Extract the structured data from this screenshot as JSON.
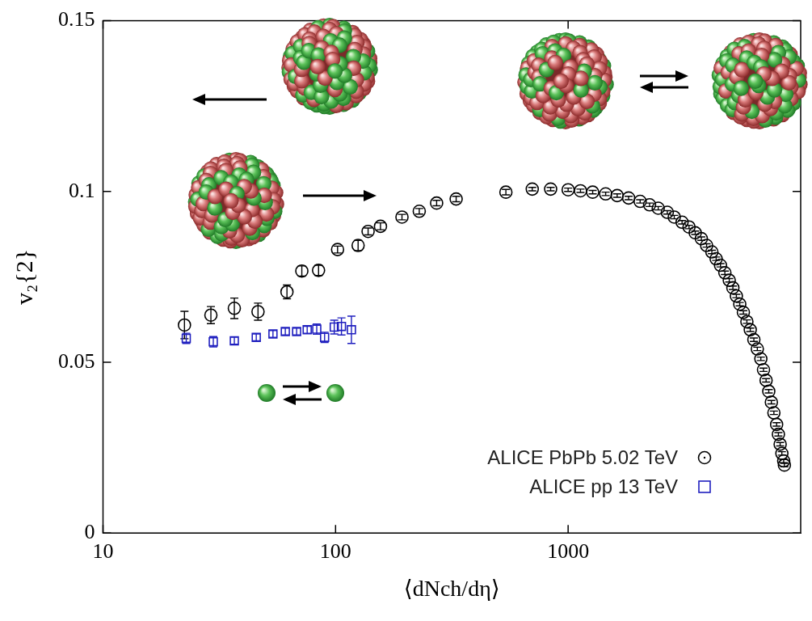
{
  "chart_data": {
    "type": "scatter",
    "x_label": "⟨dNch/dη⟩",
    "y_label": "v₂{2}",
    "log": "x",
    "grid": false,
    "legend": "lower right",
    "xlim": [
      10,
      10000
    ],
    "xticks": [
      10,
      100,
      1000
    ],
    "ylim": [
      0,
      0.15
    ],
    "yticks": [
      0,
      0.05,
      0.1,
      0.15
    ],
    "series": [
      {
        "name": "ALICE PbPb 5.02 TeV",
        "color": "#000000",
        "marker": "circle",
        "x": [
          22.4,
          29.1,
          36.7,
          46.4,
          61.8,
          71.6,
          84.5,
          102,
          125,
          138,
          156,
          193,
          229,
          272,
          330,
          540,
          701,
          841,
          1000,
          1130,
          1275,
          1450,
          1625,
          1820,
          2040,
          2240,
          2440,
          2670,
          2860,
          3090,
          3310,
          3520,
          3740,
          3940,
          4150,
          4330,
          4520,
          4720,
          4930,
          5110,
          5290,
          5470,
          5670,
          5870,
          6070,
          6290,
          6510,
          6740,
          6920,
          7100,
          7290,
          7480,
          7670,
          7880,
          8020,
          8160,
          8300,
          8450,
          8510
        ],
        "values": [
          0.0609,
          0.0638,
          0.0658,
          0.0648,
          0.0706,
          0.0767,
          0.0769,
          0.083,
          0.0842,
          0.0883,
          0.0898,
          0.0925,
          0.0942,
          0.0966,
          0.0978,
          0.0998,
          0.1007,
          0.1007,
          0.1005,
          0.1002,
          0.0998,
          0.0993,
          0.0988,
          0.0981,
          0.0971,
          0.0961,
          0.0951,
          0.0939,
          0.0925,
          0.091,
          0.0896,
          0.0879,
          0.0862,
          0.0842,
          0.0823,
          0.0803,
          0.0784,
          0.0762,
          0.074,
          0.0718,
          0.0694,
          0.067,
          0.0646,
          0.0619,
          0.0595,
          0.0566,
          0.0539,
          0.051,
          0.0478,
          0.0447,
          0.0415,
          0.0383,
          0.0352,
          0.0318,
          0.0289,
          0.026,
          0.0233,
          0.0211,
          0.0199
        ],
        "errors": [
          0.004,
          0.0025,
          0.003,
          0.0025,
          0.002,
          0.0015,
          0.0015,
          0.001,
          0.0015,
          0.001,
          0.001,
          0.0008,
          0.0008,
          0.0008,
          0.0008,
          0.0008,
          0.0005,
          0.0005,
          0.0005,
          0.0005,
          0.0005,
          0.0005,
          0.0005,
          0.0005,
          0.0005,
          0.0005,
          0.0005,
          0.0005,
          0.0005,
          0.0005,
          0.0005,
          0.0005,
          0.0005,
          0.0005,
          0.0005,
          0.0005,
          0.0005,
          0.0005,
          0.0005,
          0.0005,
          0.0005,
          0.0005,
          0.0005,
          0.0005,
          0.0005,
          0.0005,
          0.0005,
          0.0005,
          0.0005,
          0.0005,
          0.0005,
          0.0005,
          0.0005,
          0.0005,
          0.0005,
          0.0005,
          0.0005,
          0.0005,
          0.0005
        ]
      },
      {
        "name": "ALICE pp 13 TeV",
        "color": "#1f1fbf",
        "marker": "square",
        "x": [
          22.8,
          29.8,
          36.7,
          45.6,
          53.8,
          60.8,
          68,
          75.5,
          83,
          89.7,
          98.7,
          106,
          117
        ],
        "values": [
          0.057,
          0.056,
          0.0563,
          0.0573,
          0.0583,
          0.059,
          0.059,
          0.0595,
          0.0597,
          0.0573,
          0.0603,
          0.0605,
          0.0595
        ],
        "errors": [
          0.0015,
          0.0015,
          0.001,
          0.001,
          0.001,
          0.001,
          0.001,
          0.001,
          0.0015,
          0.0015,
          0.002,
          0.0025,
          0.004
        ]
      }
    ]
  }
}
